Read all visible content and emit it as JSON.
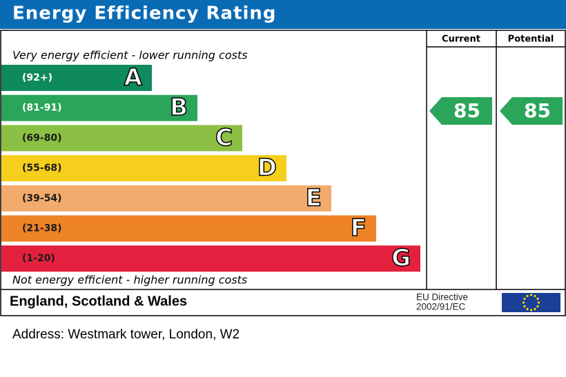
{
  "title": "Energy Efficiency Rating",
  "columns": [
    "Current",
    "Potential"
  ],
  "top_note": "Very energy efficient - lower running costs",
  "bands": [
    {
      "range": "(92+)",
      "letter": "A",
      "color": "#0f8a5c",
      "text_color": "#ffffff"
    },
    {
      "range": "(81-91)",
      "letter": "B",
      "color": "#2aa55a",
      "text_color": "#ffffff"
    },
    {
      "range": "(69-80)",
      "letter": "C",
      "color": "#8cc044",
      "text_color": "#1a1a1a"
    },
    {
      "range": "(55-68)",
      "letter": "D",
      "color": "#f6cf1c",
      "text_color": "#1a1a1a"
    },
    {
      "range": "(39-54)",
      "letter": "E",
      "color": "#f2ab6c",
      "text_color": "#1a1a1a"
    },
    {
      "range": "(21-38)",
      "letter": "F",
      "color": "#ee8227",
      "text_color": "#1a1a1a"
    },
    {
      "range": "(1-20)",
      "letter": "G",
      "color": "#e3213e",
      "text_color": "#1a1a1a"
    }
  ],
  "bottom_note": "Not energy efficient - higher running costs",
  "current": {
    "value": 85,
    "color": "#2aa55a"
  },
  "potential": {
    "value": 85,
    "color": "#2aa55a"
  },
  "region": "England, Scotland & Wales",
  "directive": [
    "EU Directive",
    "2002/91/EC"
  ],
  "address": "Address: Westmark tower, London, W2"
}
